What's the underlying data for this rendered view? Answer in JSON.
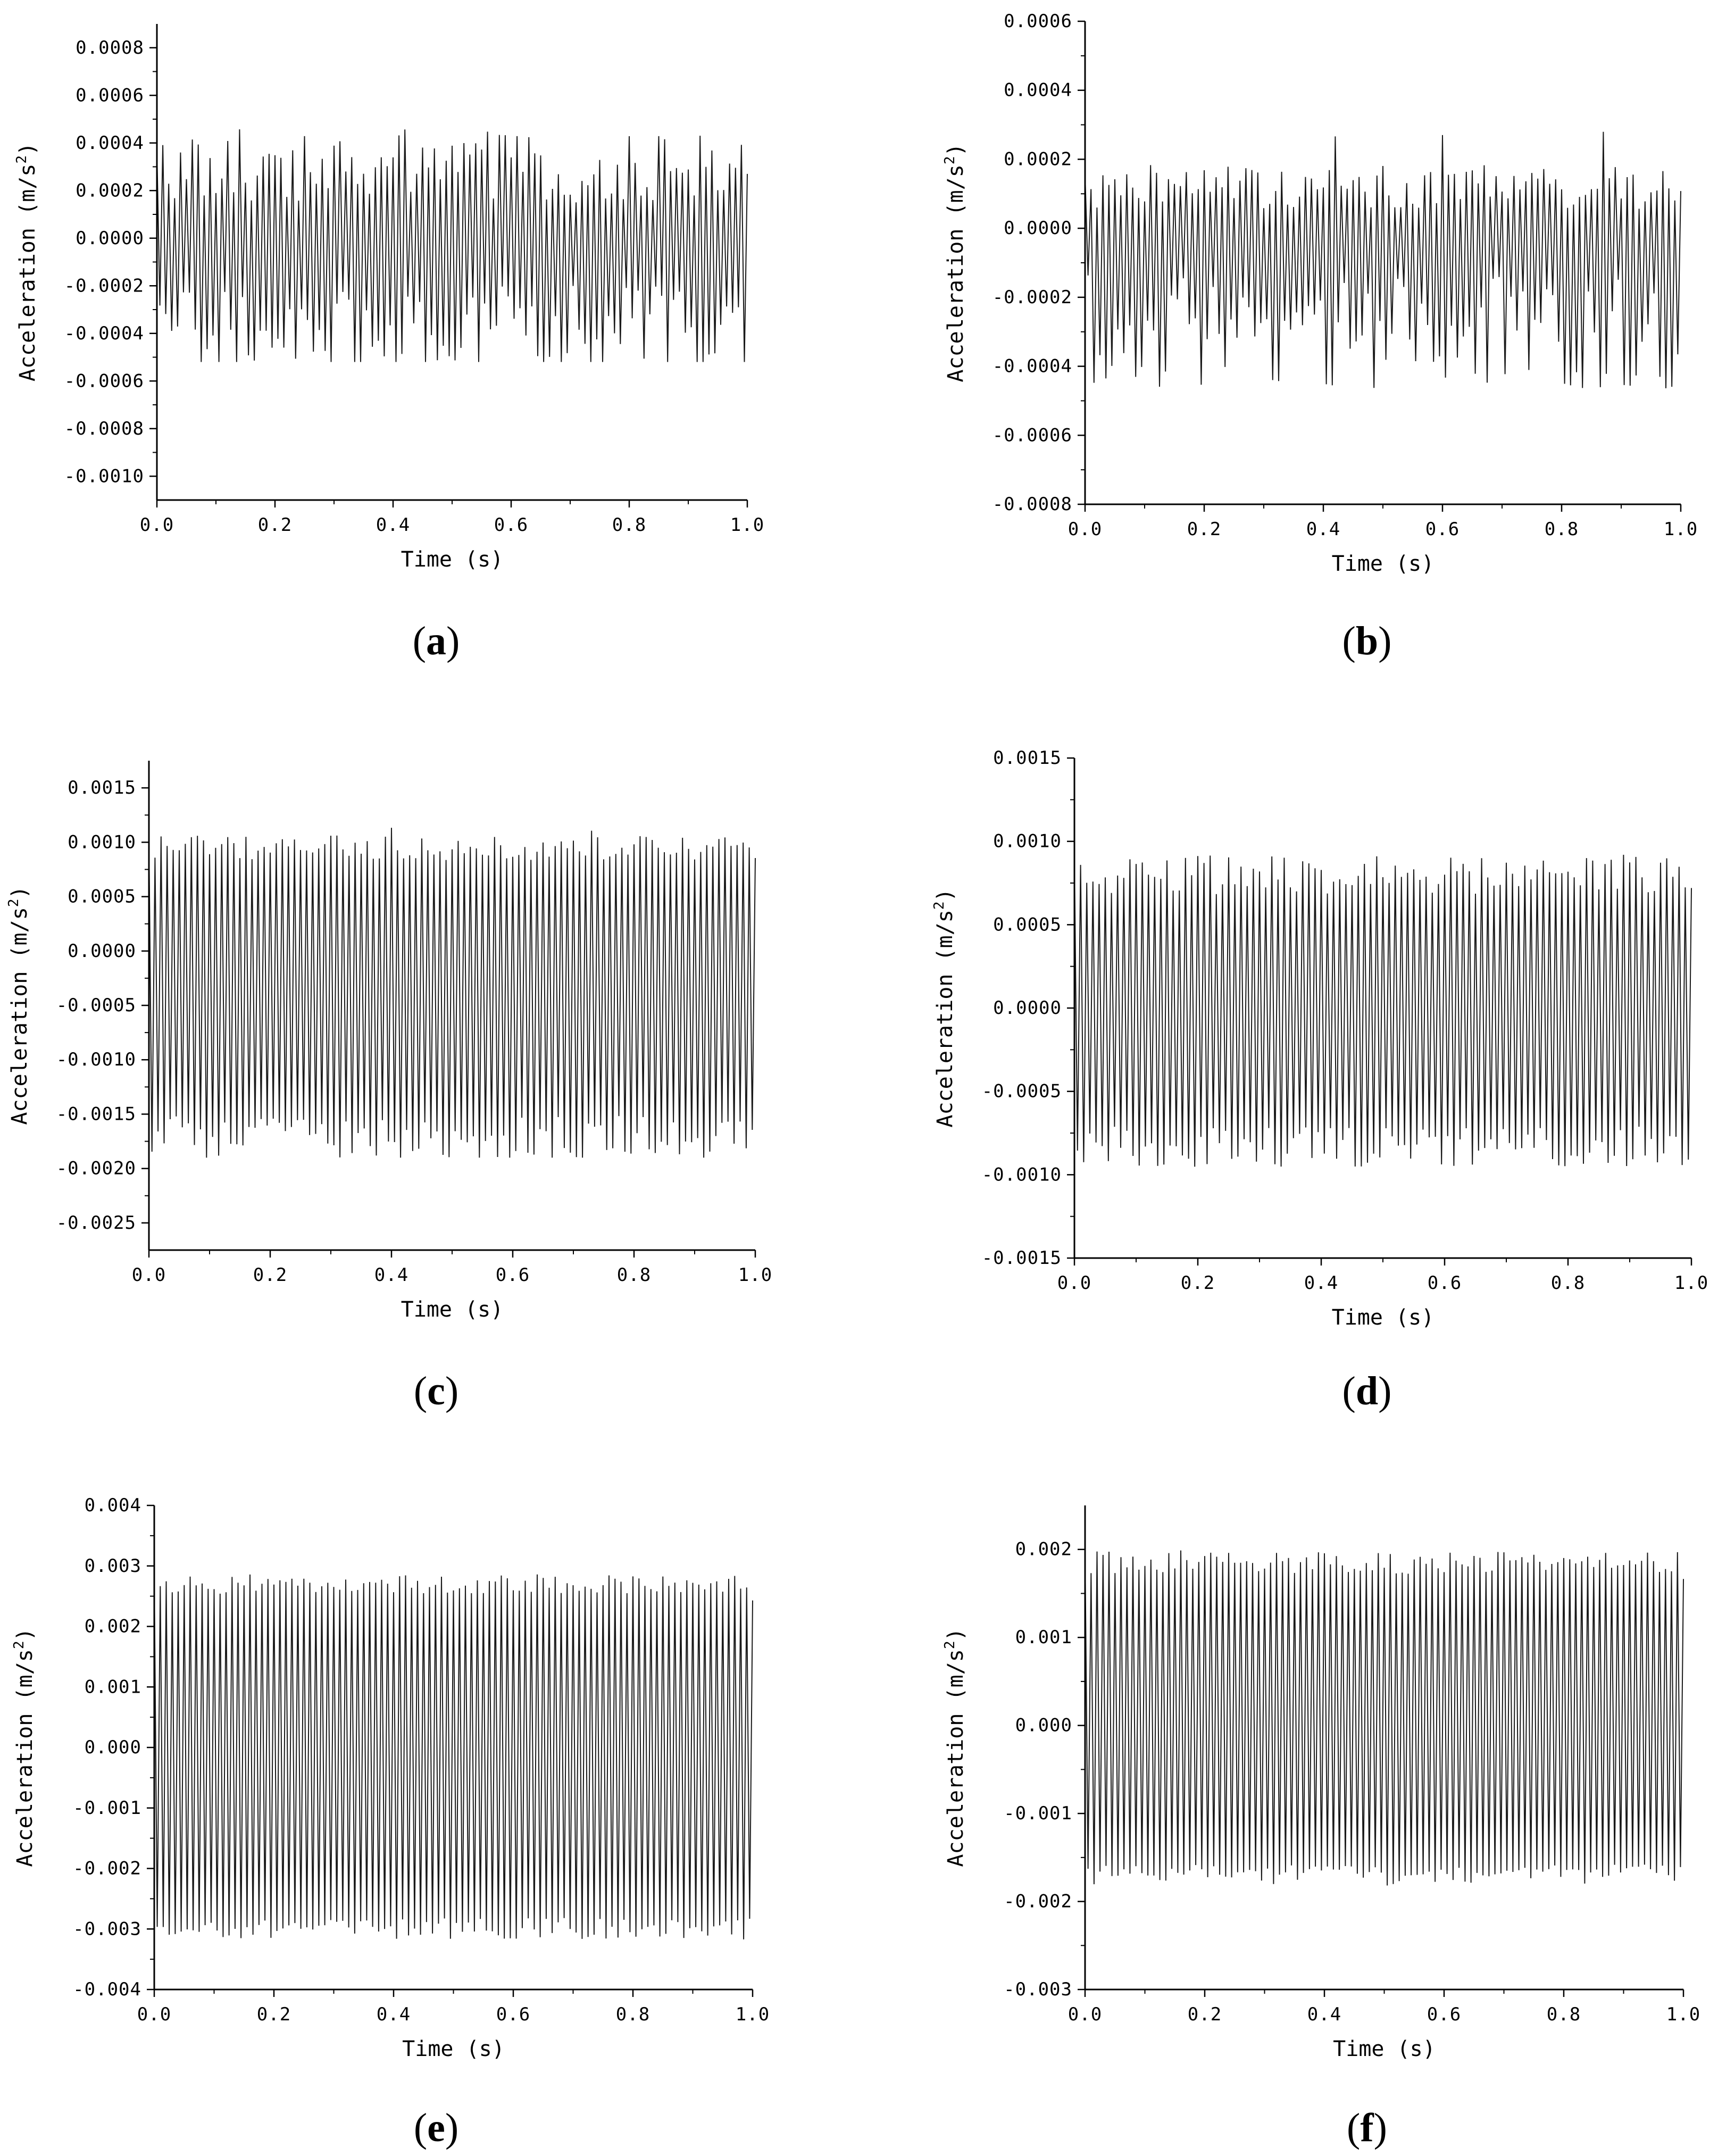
{
  "chart_data": [
    {
      "id": "a",
      "type": "line",
      "panel_label": "(a)",
      "xlabel": "Time (s)",
      "ylabel": "Acceleration (m/s²)",
      "xlim": [
        0.0,
        1.0
      ],
      "ylim": [
        -0.0011,
        0.0009
      ],
      "xticks": [
        "0.0",
        "0.2",
        "0.4",
        "0.6",
        "0.8",
        "1.0"
      ],
      "yticks": [
        "-0.0010",
        "-0.0008",
        "-0.0006",
        "-0.0004",
        "-0.0002",
        "0.0000",
        "0.0002",
        "0.0004",
        "0.0006",
        "0.0008"
      ],
      "ytick_values": [
        -0.001,
        -0.0008,
        -0.0006,
        -0.0004,
        -0.0002,
        0.0,
        0.0002,
        0.0004,
        0.0006,
        0.0008
      ],
      "series": [
        {
          "t_start": 0.0,
          "t_end": 1.0,
          "oscillation_count": 100,
          "upper_envelope": 0.0003,
          "lower_envelope": -0.0004,
          "max_peak": 0.00048,
          "min_trough": -0.00052,
          "noise": 0.5
        }
      ]
    },
    {
      "id": "b",
      "type": "line",
      "panel_label": "(b)",
      "xlabel": "Time (s)",
      "ylabel": "Acceleration (m/s²)",
      "xlim": [
        0.0,
        1.0
      ],
      "ylim": [
        -0.0008,
        0.0006
      ],
      "xticks": [
        "0.0",
        "0.2",
        "0.4",
        "0.6",
        "0.8",
        "1.0"
      ],
      "yticks": [
        "-0.0008",
        "-0.0006",
        "-0.0004",
        "-0.0002",
        "0.0000",
        "0.0002",
        "0.0004",
        "0.0006"
      ],
      "ytick_values": [
        -0.0008,
        -0.0006,
        -0.0004,
        -0.0002,
        0.0,
        0.0002,
        0.0004,
        0.0006
      ],
      "series": [
        {
          "t_start": 0.0,
          "t_end": 1.0,
          "oscillation_count": 100,
          "upper_envelope": 0.00012,
          "lower_envelope": -0.0003,
          "max_peak": 0.00028,
          "min_trough": -0.00047,
          "noise": 0.55
        }
      ]
    },
    {
      "id": "c",
      "type": "line",
      "panel_label": "(c)",
      "xlabel": "Time (s)",
      "ylabel": "Acceleration (m/s²)",
      "xlim": [
        0.0,
        1.0
      ],
      "ylim": [
        -0.00275,
        0.00175
      ],
      "xticks": [
        "0.0",
        "0.2",
        "0.4",
        "0.6",
        "0.8",
        "1.0"
      ],
      "yticks": [
        "-0.0025",
        "-0.0020",
        "-0.0015",
        "-0.0010",
        "-0.0005",
        "0.0000",
        "0.0005",
        "0.0010",
        "0.0015"
      ],
      "ytick_values": [
        -0.0025,
        -0.002,
        -0.0015,
        -0.001,
        -0.0005,
        0.0,
        0.0005,
        0.001,
        0.0015
      ],
      "series": [
        {
          "t_start": 0.0,
          "t_end": 1.0,
          "oscillation_count": 100,
          "upper_envelope": 0.00095,
          "lower_envelope": -0.00172,
          "max_peak": 0.00115,
          "min_trough": -0.0019,
          "noise": 0.12
        }
      ]
    },
    {
      "id": "d",
      "type": "line",
      "panel_label": "(d)",
      "xlabel": "Time (s)",
      "ylabel": "Acceleration (m/s²)",
      "xlim": [
        0.0,
        1.0
      ],
      "ylim": [
        -0.0015,
        0.0015
      ],
      "xticks": [
        "0.0",
        "0.2",
        "0.4",
        "0.6",
        "0.8",
        "1.0"
      ],
      "yticks": [
        "-0.0015",
        "-0.0010",
        "-0.0005",
        "0.0000",
        "0.0005",
        "0.0010",
        "0.0015"
      ],
      "ytick_values": [
        -0.0015,
        -0.001,
        -0.0005,
        0.0,
        0.0005,
        0.001,
        0.0015
      ],
      "series": [
        {
          "t_start": 0.0,
          "t_end": 1.0,
          "oscillation_count": 100,
          "upper_envelope": 0.0008,
          "lower_envelope": -0.00083,
          "max_peak": 0.00094,
          "min_trough": -0.00097,
          "noise": 0.15
        }
      ]
    },
    {
      "id": "e",
      "type": "line",
      "panel_label": "(e)",
      "xlabel": "Time (s)",
      "ylabel": "Acceleration (m/s²)",
      "xlim": [
        0.0,
        1.0
      ],
      "ylim": [
        -0.004,
        0.004
      ],
      "xticks": [
        "0.0",
        "0.2",
        "0.4",
        "0.6",
        "0.8",
        "1.0"
      ],
      "yticks": [
        "-0.004",
        "-0.003",
        "-0.002",
        "-0.001",
        "0.000",
        "0.001",
        "0.002",
        "0.003",
        "0.004"
      ],
      "ytick_values": [
        -0.004,
        -0.003,
        -0.002,
        -0.001,
        0.0,
        0.001,
        0.002,
        0.003,
        0.004
      ],
      "series": [
        {
          "t_start": 0.0,
          "t_end": 1.0,
          "oscillation_count": 100,
          "upper_envelope": 0.0027,
          "lower_envelope": -0.003,
          "max_peak": 0.00295,
          "min_trough": -0.00325,
          "noise": 0.06
        }
      ]
    },
    {
      "id": "f",
      "type": "line",
      "panel_label": "(f)",
      "xlabel": "Time (s)",
      "ylabel": "Acceleration (m/s²)",
      "xlim": [
        0.0,
        1.0
      ],
      "ylim": [
        -0.003,
        0.0025
      ],
      "xticks": [
        "0.0",
        "0.2",
        "0.4",
        "0.6",
        "0.8",
        "1.0"
      ],
      "yticks": [
        "-0.003",
        "-0.002",
        "-0.001",
        "0.000",
        "0.001",
        "0.002"
      ],
      "ytick_values": [
        -0.003,
        -0.002,
        -0.001,
        0.0,
        0.001,
        0.002
      ],
      "series": [
        {
          "t_start": 0.0,
          "t_end": 1.0,
          "oscillation_count": 100,
          "upper_envelope": 0.00185,
          "lower_envelope": -0.0017,
          "max_peak": 0.00203,
          "min_trough": -0.00182,
          "noise": 0.07
        }
      ]
    }
  ]
}
